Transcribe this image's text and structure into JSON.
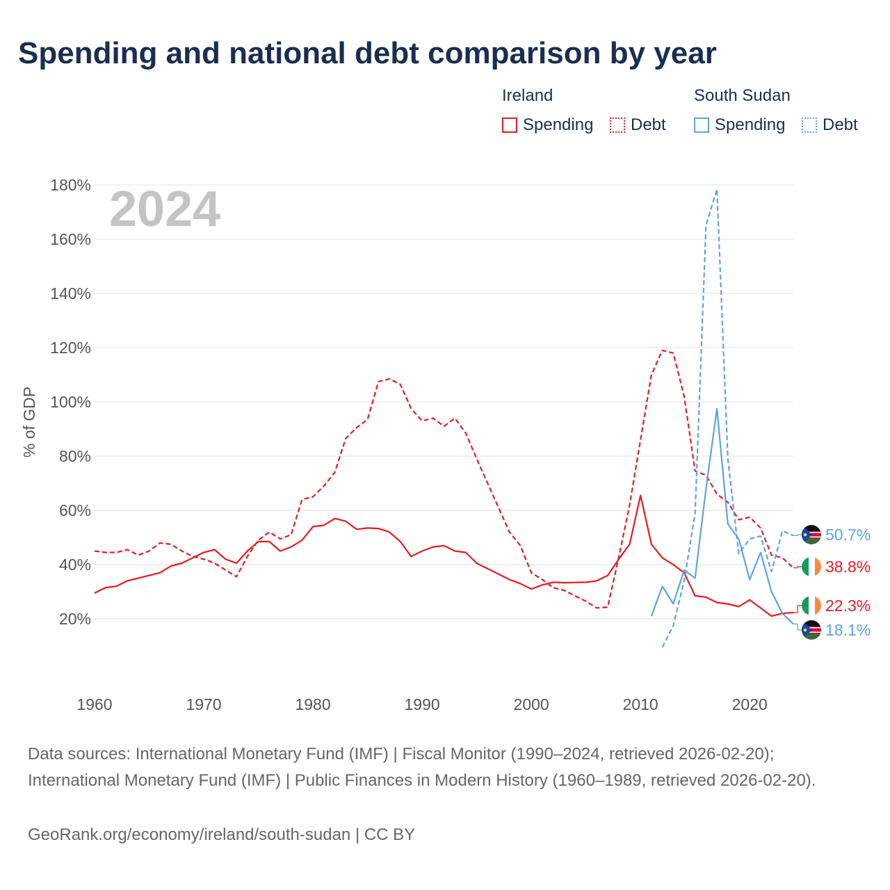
{
  "title": "Spending and national debt comparison by year",
  "legend": {
    "ireland": {
      "name": "Ireland",
      "spending": "Spending",
      "debt": "Debt",
      "color": "#e8191e"
    },
    "south_sudan": {
      "name": "South Sudan",
      "spending": "Spending",
      "debt": "Debt",
      "color": "#5ba3e6"
    }
  },
  "footer": {
    "sources": "Data sources: International Monetary Fund (IMF) | Fiscal Monitor (1990–2024, retrieved 2026-02-20); International Monetary Fund (IMF) | Public Finances in Modern History (1960–1989, retrieved 2026-02-20).",
    "credit": "GeoRank.org/economy/ireland/south-sudan | CC BY"
  },
  "chart_data": {
    "type": "line",
    "title": "Spending and national debt comparison by year",
    "year_label": "2024",
    "ylabel": "% of GDP",
    "xlabel": "",
    "xlim": [
      1960,
      2024
    ],
    "ylim": [
      0,
      185
    ],
    "x_ticks": [
      1960,
      1970,
      1980,
      1990,
      2000,
      2010,
      2020
    ],
    "y_ticks": [
      20,
      40,
      60,
      80,
      100,
      120,
      140,
      160,
      180
    ],
    "y_tick_labels": [
      "20%",
      "40%",
      "60%",
      "80%",
      "100%",
      "120%",
      "140%",
      "160%",
      "180%"
    ],
    "grid": true,
    "series": [
      {
        "name": "Ireland Spending",
        "country": "Ireland",
        "metric": "Spending",
        "color": "#e8191e",
        "dashed": false,
        "x": [
          1960,
          1961,
          1962,
          1963,
          1964,
          1965,
          1966,
          1967,
          1968,
          1969,
          1970,
          1971,
          1972,
          1973,
          1974,
          1975,
          1976,
          1977,
          1978,
          1979,
          1980,
          1981,
          1982,
          1983,
          1984,
          1985,
          1986,
          1987,
          1988,
          1989,
          1990,
          1991,
          1992,
          1993,
          1994,
          1995,
          1996,
          1997,
          1998,
          1999,
          2000,
          2001,
          2002,
          2003,
          2004,
          2005,
          2006,
          2007,
          2008,
          2009,
          2010,
          2011,
          2012,
          2013,
          2014,
          2015,
          2016,
          2017,
          2018,
          2019,
          2020,
          2021,
          2022,
          2023,
          2024
        ],
        "values": [
          29.5,
          31.5,
          32,
          34,
          35,
          36,
          37,
          39.5,
          40.5,
          42.5,
          44.5,
          45.5,
          42,
          40.5,
          45,
          48.5,
          48.5,
          45,
          46.5,
          49,
          54,
          54.5,
          57,
          56,
          53,
          53.5,
          53.3,
          52,
          48.5,
          43,
          45,
          46.5,
          47,
          45,
          44.5,
          40.5,
          38.5,
          36.5,
          34.5,
          33,
          31,
          32.5,
          33.5,
          33.3,
          33.4,
          33.5,
          34,
          36,
          42,
          47.5,
          65.5,
          47.5,
          42.5,
          40,
          37,
          28.5,
          28,
          26,
          25.5,
          24.5,
          27,
          24,
          21,
          22,
          22.3
        ],
        "end_label": "22.3%"
      },
      {
        "name": "Ireland Debt",
        "country": "Ireland",
        "metric": "Debt",
        "color": "#e8191e",
        "dashed": true,
        "x": [
          1960,
          1961,
          1962,
          1963,
          1964,
          1965,
          1966,
          1967,
          1968,
          1969,
          1970,
          1971,
          1972,
          1973,
          1974,
          1975,
          1976,
          1977,
          1978,
          1979,
          1980,
          1981,
          1982,
          1983,
          1984,
          1985,
          1986,
          1987,
          1988,
          1989,
          1990,
          1991,
          1992,
          1993,
          1994,
          1995,
          1996,
          1997,
          1998,
          1999,
          2000,
          2001,
          2002,
          2003,
          2004,
          2005,
          2006,
          2007,
          2008,
          2009,
          2010,
          2011,
          2012,
          2013,
          2014,
          2015,
          2016,
          2017,
          2018,
          2019,
          2020,
          2021,
          2022,
          2023,
          2024
        ],
        "values": [
          45,
          44.5,
          44.5,
          45.5,
          43.5,
          45,
          48,
          47.5,
          45,
          43,
          42,
          40.5,
          38,
          35.5,
          43,
          49,
          52,
          49.5,
          51,
          64,
          65,
          69,
          74,
          86.5,
          90.5,
          93.5,
          107.5,
          108.5,
          106.5,
          97.5,
          93,
          94,
          91,
          94,
          88.5,
          79,
          70,
          61,
          52,
          47,
          37,
          34.5,
          31.5,
          30.5,
          28.5,
          26.5,
          24,
          24.3,
          42.5,
          62,
          86,
          110,
          119,
          118,
          102,
          74.5,
          73,
          66,
          63,
          56.5,
          57.5,
          53.5,
          43.5,
          42.5,
          38.8
        ],
        "end_label": "38.8%"
      },
      {
        "name": "South Sudan Spending",
        "country": "South Sudan",
        "metric": "Spending",
        "color": "#5ba3e6",
        "dashed": false,
        "x": [
          2011,
          2012,
          2013,
          2014,
          2015,
          2016,
          2017,
          2018,
          2019,
          2020,
          2021,
          2022,
          2023,
          2024
        ],
        "values": [
          21,
          32,
          25.5,
          38,
          35,
          68,
          97.5,
          55,
          49.5,
          34.5,
          44.5,
          30,
          22,
          18.1
        ],
        "end_label": "18.1%"
      },
      {
        "name": "South Sudan Debt",
        "country": "South Sudan",
        "metric": "Debt",
        "color": "#5ba3e6",
        "dashed": true,
        "x": [
          2012,
          2013,
          2014,
          2015,
          2016,
          2017,
          2018,
          2019,
          2020,
          2021,
          2022,
          2023,
          2024
        ],
        "values": [
          9.5,
          17.5,
          34,
          59,
          165,
          178.5,
          79,
          44,
          49.5,
          50.5,
          37.5,
          52.5,
          50.7
        ],
        "end_label": "50.7%"
      }
    ]
  }
}
